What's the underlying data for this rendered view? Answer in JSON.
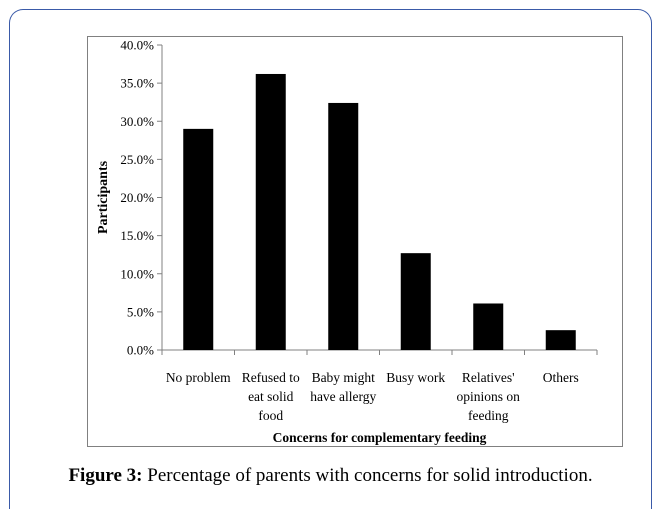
{
  "caption": {
    "label": "Figure 3:",
    "text": "Percentage of parents with concerns for solid introduction."
  },
  "colors": {
    "bar": "#000000",
    "axis": "#808080",
    "frame_border": "#3a5aa8"
  },
  "chart_data": {
    "type": "bar",
    "title": "",
    "xlabel": "Concerns for complementary feeding",
    "ylabel": "Participants",
    "categories": [
      [
        "No problem"
      ],
      [
        "Refused to",
        "eat solid",
        "food"
      ],
      [
        "Baby might",
        "have allergy"
      ],
      [
        "Busy work"
      ],
      [
        "Relatives'",
        "opinions on",
        "feeding"
      ],
      [
        "Others"
      ]
    ],
    "values": [
      29.0,
      36.2,
      32.4,
      12.7,
      6.1,
      2.6
    ],
    "ylim": [
      0,
      40
    ],
    "yticks": [
      "0.0%",
      "5.0%",
      "10.0%",
      "15.0%",
      "20.0%",
      "25.0%",
      "30.0%",
      "35.0%",
      "40.0%"
    ],
    "grid": false,
    "legend": "none"
  }
}
